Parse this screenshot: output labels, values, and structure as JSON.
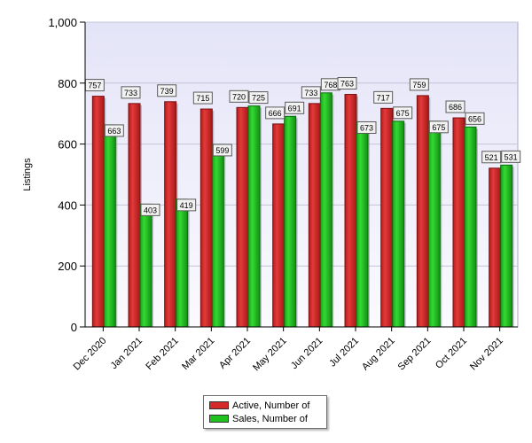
{
  "chart_data": {
    "type": "bar",
    "ylabel": "Listings",
    "ylim": [
      0,
      1000
    ],
    "yticks": [
      "0",
      "200",
      "400",
      "600",
      "800",
      "1,000"
    ],
    "categories": [
      "Dec 2020",
      "Jan 2021",
      "Feb 2021",
      "Mar 2021",
      "Apr 2021",
      "May 2021",
      "Jun 2021",
      "Jul 2021",
      "Aug 2021",
      "Sep 2021",
      "Oct 2021",
      "Nov 2021"
    ],
    "series": [
      {
        "name": "Active, Number of",
        "color": "#d42a2a",
        "values": [
          757,
          733,
          739,
          715,
          720,
          666,
          733,
          763,
          717,
          759,
          686,
          521
        ]
      },
      {
        "name": "Sales, Number of",
        "color": "#1fc21f",
        "values": [
          663,
          403,
          419,
          599,
          725,
          691,
          768,
          673,
          675,
          675,
          656,
          531
        ]
      }
    ],
    "grid": true,
    "legend": "bottom-center"
  }
}
